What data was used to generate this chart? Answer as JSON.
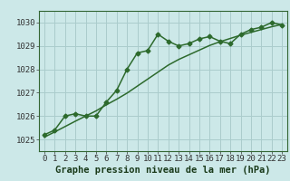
{
  "title": "Graphe pression niveau de la mer (hPa)",
  "background_color": "#cce8e8",
  "grid_color": "#aacccc",
  "line_color": "#2d6a2d",
  "x_labels": [
    "0",
    "1",
    "2",
    "3",
    "4",
    "5",
    "6",
    "7",
    "8",
    "9",
    "10",
    "11",
    "12",
    "13",
    "14",
    "15",
    "16",
    "17",
    "18",
    "19",
    "20",
    "21",
    "22",
    "23"
  ],
  "x_values": [
    0,
    1,
    2,
    3,
    4,
    5,
    6,
    7,
    8,
    9,
    10,
    11,
    12,
    13,
    14,
    15,
    16,
    17,
    18,
    19,
    20,
    21,
    22,
    23
  ],
  "y_data": [
    1025.2,
    1025.4,
    1026.0,
    1026.1,
    1026.0,
    1026.0,
    1026.6,
    1027.1,
    1028.0,
    1028.7,
    1028.8,
    1029.5,
    1029.2,
    1029.0,
    1029.1,
    1029.3,
    1029.4,
    1029.2,
    1029.1,
    1029.5,
    1029.7,
    1029.8,
    1030.0,
    1029.9
  ],
  "y_smooth": [
    1025.1,
    1025.32,
    1025.55,
    1025.78,
    1026.0,
    1026.22,
    1026.48,
    1026.72,
    1026.98,
    1027.28,
    1027.58,
    1027.88,
    1028.18,
    1028.42,
    1028.62,
    1028.82,
    1029.02,
    1029.18,
    1029.32,
    1029.46,
    1029.58,
    1029.7,
    1029.82,
    1029.92
  ],
  "ylim": [
    1024.5,
    1030.5
  ],
  "yticks": [
    1025,
    1026,
    1027,
    1028,
    1029,
    1030
  ],
  "title_fontsize": 7.5,
  "tick_fontsize": 6.5,
  "xlabel_fontsize": 7.5
}
